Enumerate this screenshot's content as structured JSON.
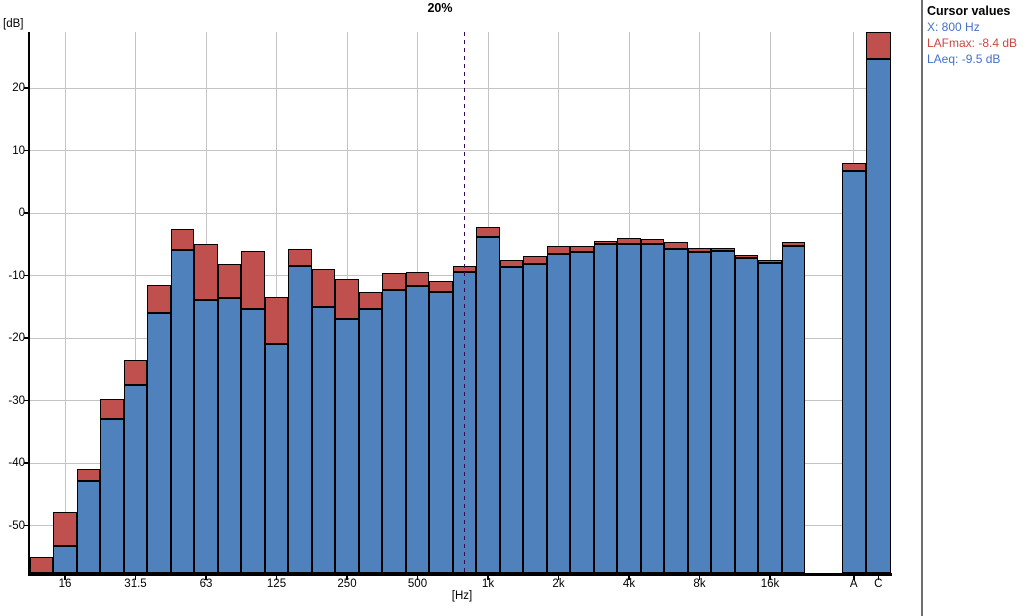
{
  "title": "20%",
  "cursor_panel": {
    "title": "Cursor values",
    "x_line": "X: 800 Hz",
    "max_line": "LAFmax: -8.4 dB",
    "eq_line": "LAeq: -9.5 dB"
  },
  "colors": {
    "bar_blue": "#4F81BD",
    "bar_red": "#C0504D",
    "bar_outline": "#000000",
    "gridline": "#C4C4C4",
    "cursor_line": "#380C50",
    "panel_text_blue": "#4472C4",
    "panel_text_red": "#C94A43",
    "axis": "#000000"
  },
  "chart_data": {
    "type": "bar",
    "stacked": true,
    "title": "20%",
    "xlabel": "[Hz]",
    "ylabel": "[dB]",
    "ylim": [
      -57.6,
      29
    ],
    "grid": true,
    "legend_position": "none",
    "note": "Third-octave band spectrum; red segment spans from LAFmax down to LAeq (blue). Dashed cursor at 800 Hz band. A and C are broadband weighted totals. 12.5 Hz LAeq and C LAFmax are clipped by the plot edges.",
    "yticks": [
      20,
      10,
      0,
      -10,
      -20,
      -30,
      -40,
      -50
    ],
    "xticks": [
      {
        "label": "16",
        "band": 1
      },
      {
        "label": "31.5",
        "band": 4
      },
      {
        "label": "63",
        "band": 7
      },
      {
        "label": "125",
        "band": 10
      },
      {
        "label": "250",
        "band": 13
      },
      {
        "label": "500",
        "band": 16
      },
      {
        "label": "1k",
        "band": 19
      },
      {
        "label": "2k",
        "band": 22
      },
      {
        "label": "4k",
        "band": 25
      },
      {
        "label": "8k",
        "band": 28
      },
      {
        "label": "16k",
        "band": 31
      },
      {
        "label": "A",
        "band": 33
      },
      {
        "label": "C",
        "band": 34
      }
    ],
    "categories": [
      "12.5",
      "16",
      "20",
      "25",
      "31.5",
      "40",
      "50",
      "63",
      "80",
      "100",
      "125",
      "160",
      "200",
      "250",
      "315",
      "400",
      "500",
      "630",
      "800",
      "1k",
      "1.25k",
      "1.6k",
      "2k",
      "2.5k",
      "3.15k",
      "4k",
      "5k",
      "6.3k",
      "8k",
      "10k",
      "12.5k",
      "16k",
      "20k",
      "A",
      "C"
    ],
    "series": [
      {
        "name": "LAFmax",
        "color": "#C0504D",
        "values": [
          -55.0,
          -47.9,
          -40.9,
          -29.7,
          -23.5,
          -11.5,
          -2.6,
          -5.0,
          -8.1,
          -6.0,
          -13.5,
          -5.7,
          -9.0,
          -10.5,
          -12.7,
          -9.6,
          -9.4,
          -10.8,
          -8.4,
          -2.2,
          -7.5,
          -6.8,
          -5.2,
          -5.3,
          -4.4,
          -4.0,
          -4.2,
          -4.7,
          -5.6,
          -5.6,
          -6.7,
          -7.5,
          -4.6,
          8.0,
          29.0
        ]
      },
      {
        "name": "LAeq",
        "color": "#4F81BD",
        "values": [
          -58.5,
          -53.2,
          -42.8,
          -33.0,
          -27.5,
          -16.0,
          -5.9,
          -13.9,
          -13.6,
          -15.3,
          -20.9,
          -8.4,
          -15.1,
          -17.0,
          -15.3,
          -12.3,
          -11.6,
          -12.6,
          -9.5,
          -3.8,
          -8.7,
          -8.1,
          -6.5,
          -6.3,
          -5.0,
          -4.9,
          -5.0,
          -5.7,
          -6.3,
          -6.1,
          -7.2,
          -8.0,
          -5.3,
          6.8,
          24.7
        ]
      }
    ],
    "cursor": {
      "band_index": 18,
      "x": "800 Hz",
      "LAFmax": -8.4,
      "LAeq": -9.5
    }
  }
}
